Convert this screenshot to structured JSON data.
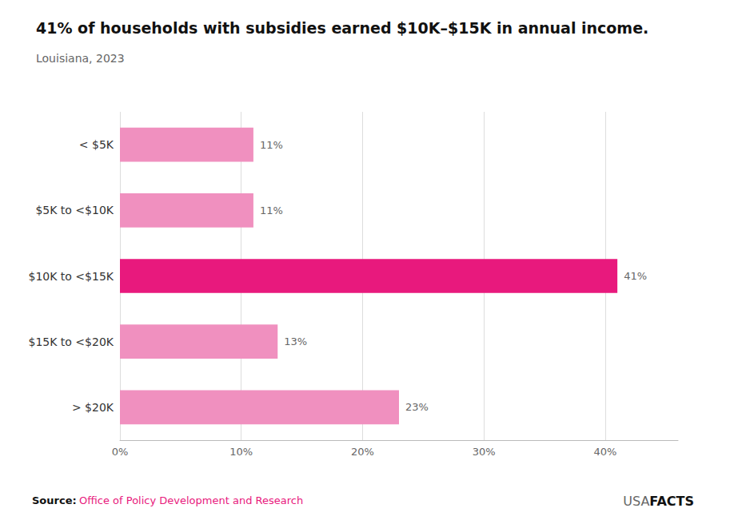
{
  "chart_data": {
    "type": "bar",
    "orientation": "horizontal",
    "title": "41% of households with subsidies earned $10K–$15K in annual income.",
    "subtitle": "Louisiana, 2023",
    "categories": [
      "< $5K",
      "$5K to <$10K",
      "$10K to <$15K",
      "$15K to <$20K",
      "> $20K"
    ],
    "values": [
      11,
      11,
      41,
      13,
      23
    ],
    "value_labels": [
      "11%",
      "11%",
      "41%",
      "13%",
      "23%"
    ],
    "colors": [
      "#f090bf",
      "#f090bf",
      "#e8197d",
      "#f090bf",
      "#f090bf"
    ],
    "xlim": [
      0,
      46
    ],
    "xticks": [
      {
        "value": 0,
        "label": "0%"
      },
      {
        "value": 10,
        "label": "10%"
      },
      {
        "value": 20,
        "label": "20%"
      },
      {
        "value": 30,
        "label": "30%"
      },
      {
        "value": 40,
        "label": "40%"
      }
    ],
    "grid": true,
    "data_labels": true,
    "annotations": [
      "Source:",
      "Office of Policy Development and Research",
      "USA",
      "FACTS"
    ]
  }
}
